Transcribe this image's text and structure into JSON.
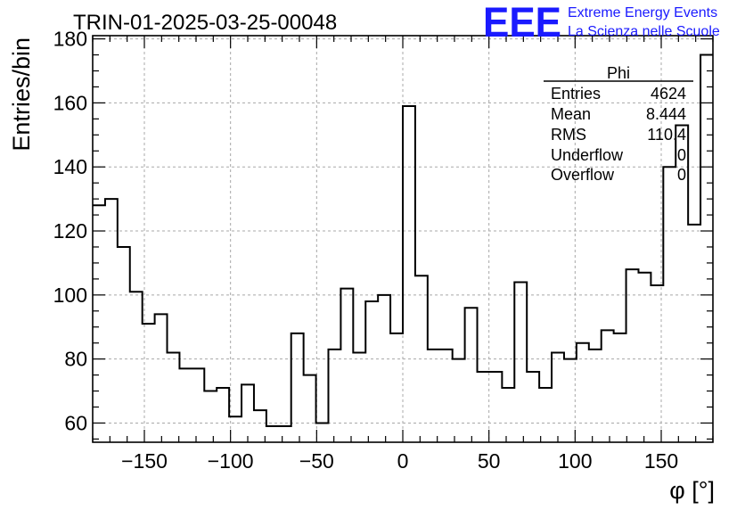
{
  "chart_data": {
    "type": "histogram",
    "title": "TRIN-01-2025-03-25-00048",
    "xlabel": "φ [°]",
    "ylabel": "Entries/bin",
    "xlim": [
      -180,
      180
    ],
    "ylim": [
      54,
      181
    ],
    "bin_width": 7.2,
    "x_ticks": [
      -150,
      -100,
      -50,
      0,
      50,
      100,
      150
    ],
    "x_tick_labels": [
      "−150",
      "−100",
      "−50",
      "0",
      "50",
      "100",
      "150"
    ],
    "y_ticks": [
      60,
      80,
      100,
      120,
      140,
      160,
      180
    ],
    "y_tick_labels": [
      "60",
      "80",
      "100",
      "120",
      "140",
      "160",
      "180"
    ],
    "grid": true,
    "values": [
      128,
      130,
      115,
      101,
      91,
      94,
      82,
      77,
      77,
      70,
      71,
      62,
      72,
      64,
      59,
      59,
      88,
      75,
      60,
      83,
      102,
      82,
      98,
      100,
      88,
      159,
      106,
      83,
      83,
      80,
      96,
      76,
      76,
      71,
      104,
      76,
      71,
      82,
      80,
      85,
      83,
      89,
      88,
      108,
      107,
      103,
      140,
      153,
      122,
      175
    ],
    "stats_box": {
      "name": "Phi",
      "rows": [
        {
          "label": "Entries",
          "value": "4624"
        },
        {
          "label": "Mean",
          "value": "8.444"
        },
        {
          "label": "RMS",
          "value": "110.4"
        },
        {
          "label": "Underflow",
          "value": "0"
        },
        {
          "label": "Overflow",
          "value": "0"
        }
      ]
    },
    "logo": {
      "text": "EEE",
      "line1": "Extreme Energy Events",
      "line2": "La Scienza nelle Scuole"
    },
    "line_color": "#000000",
    "grid_color": "#a8a8a8",
    "logo_color": "#1a1aff"
  }
}
